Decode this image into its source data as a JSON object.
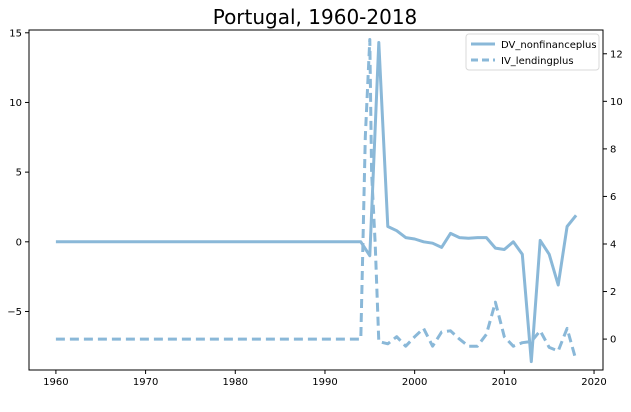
{
  "chart_data": {
    "type": "line",
    "title": "Portugal, 1960-2018",
    "xlabel": "",
    "ylabel": "",
    "xlim": [
      1957,
      2021
    ],
    "ylim_left": [
      -9.2,
      15.2
    ],
    "ylim_right": [
      -1.3,
      13.0
    ],
    "x_ticks": [
      1960,
      1970,
      1980,
      1990,
      2000,
      2010,
      2020
    ],
    "y_ticks_left": [
      -5,
      0,
      5,
      10,
      15
    ],
    "y_ticks_right": [
      0,
      2,
      4,
      6,
      8,
      10,
      12
    ],
    "legend_position": "top-right",
    "grid": false,
    "color": "#8ab8d8",
    "series": [
      {
        "name": "DV_nonfinanceplus",
        "axis": "left",
        "style": "solid",
        "points": [
          [
            1960,
            0
          ],
          [
            1961,
            0
          ],
          [
            1962,
            0
          ],
          [
            1963,
            0
          ],
          [
            1964,
            0
          ],
          [
            1965,
            0
          ],
          [
            1966,
            0
          ],
          [
            1967,
            0
          ],
          [
            1968,
            0
          ],
          [
            1969,
            0
          ],
          [
            1970,
            0
          ],
          [
            1971,
            0
          ],
          [
            1972,
            0
          ],
          [
            1973,
            0
          ],
          [
            1974,
            0
          ],
          [
            1975,
            0
          ],
          [
            1976,
            0
          ],
          [
            1977,
            0
          ],
          [
            1978,
            0
          ],
          [
            1979,
            0
          ],
          [
            1980,
            0
          ],
          [
            1981,
            0
          ],
          [
            1982,
            0
          ],
          [
            1983,
            0
          ],
          [
            1984,
            0
          ],
          [
            1985,
            0
          ],
          [
            1986,
            0
          ],
          [
            1987,
            0
          ],
          [
            1988,
            0
          ],
          [
            1989,
            0
          ],
          [
            1990,
            0
          ],
          [
            1991,
            0
          ],
          [
            1992,
            0
          ],
          [
            1993,
            0
          ],
          [
            1994,
            0
          ],
          [
            1995,
            -1.0
          ],
          [
            1996,
            14.3
          ],
          [
            1997,
            1.1
          ],
          [
            1998,
            0.8
          ],
          [
            1999,
            0.3
          ],
          [
            2000,
            0.2
          ],
          [
            2001,
            0.0
          ],
          [
            2002,
            -0.1
          ],
          [
            2003,
            -0.4
          ],
          [
            2004,
            0.6
          ],
          [
            2005,
            0.3
          ],
          [
            2006,
            0.25
          ],
          [
            2007,
            0.3
          ],
          [
            2008,
            0.3
          ],
          [
            2009,
            -0.45
          ],
          [
            2010,
            -0.55
          ],
          [
            2011,
            0.0
          ],
          [
            2012,
            -0.9
          ],
          [
            2013,
            -8.6
          ],
          [
            2014,
            0.1
          ],
          [
            2015,
            -0.9
          ],
          [
            2016,
            -3.1
          ],
          [
            2017,
            1.1
          ],
          [
            2018,
            1.9
          ]
        ]
      },
      {
        "name": "IV_lendingplus",
        "axis": "right",
        "style": "dashed",
        "points": [
          [
            1960,
            0
          ],
          [
            1961,
            0
          ],
          [
            1962,
            0
          ],
          [
            1963,
            0
          ],
          [
            1964,
            0
          ],
          [
            1965,
            0
          ],
          [
            1966,
            0
          ],
          [
            1967,
            0
          ],
          [
            1968,
            0
          ],
          [
            1969,
            0
          ],
          [
            1970,
            0
          ],
          [
            1971,
            0
          ],
          [
            1972,
            0
          ],
          [
            1973,
            0
          ],
          [
            1974,
            0
          ],
          [
            1975,
            0
          ],
          [
            1976,
            0
          ],
          [
            1977,
            0
          ],
          [
            1978,
            0
          ],
          [
            1979,
            0
          ],
          [
            1980,
            0
          ],
          [
            1981,
            0
          ],
          [
            1982,
            0
          ],
          [
            1983,
            0
          ],
          [
            1984,
            0
          ],
          [
            1985,
            0
          ],
          [
            1986,
            0
          ],
          [
            1987,
            0
          ],
          [
            1988,
            0
          ],
          [
            1989,
            0
          ],
          [
            1990,
            0
          ],
          [
            1991,
            0
          ],
          [
            1992,
            0
          ],
          [
            1993,
            0
          ],
          [
            1994,
            0
          ],
          [
            1994.5,
            8.5
          ],
          [
            1995,
            12.6
          ],
          [
            1995.2,
            7.0
          ],
          [
            1995.6,
            4.0
          ],
          [
            1996,
            -0.1
          ],
          [
            1997,
            -0.2
          ],
          [
            1998,
            0.1
          ],
          [
            1999,
            -0.3
          ],
          [
            2000,
            0.1
          ],
          [
            2001,
            0.45
          ],
          [
            2002,
            -0.3
          ],
          [
            2003,
            0.3
          ],
          [
            2004,
            0.35
          ],
          [
            2005,
            0.0
          ],
          [
            2006,
            -0.3
          ],
          [
            2007,
            -0.3
          ],
          [
            2008,
            0.2
          ],
          [
            2009,
            1.55
          ],
          [
            2010,
            0.1
          ],
          [
            2011,
            -0.3
          ],
          [
            2012,
            -0.15
          ],
          [
            2013,
            -0.1
          ],
          [
            2014,
            0.35
          ],
          [
            2015,
            -0.35
          ],
          [
            2016,
            -0.5
          ],
          [
            2017,
            0.45
          ],
          [
            2018,
            -0.9
          ]
        ]
      }
    ]
  }
}
